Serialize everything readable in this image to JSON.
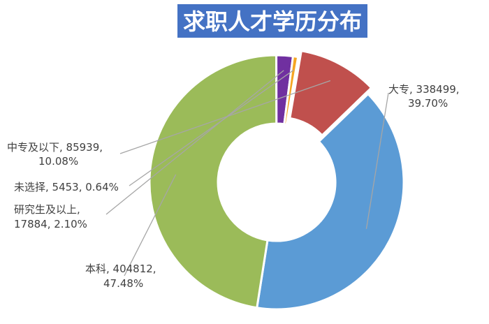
{
  "chart_data": {
    "type": "pie",
    "variant": "donut",
    "title": "求职人才学历分布",
    "slices": [
      {
        "name": "大专",
        "value": 338499,
        "percent": "39.70%",
        "color": "#5b9bd5",
        "label_line1": "大专, 338499,",
        "label_line2": "39.70%"
      },
      {
        "name": "本科",
        "value": 404812,
        "percent": "47.48%",
        "color": "#9bbb59",
        "label_line1": "本科, 404812,",
        "label_line2": "47.48%"
      },
      {
        "name": "研究生及以上",
        "value": 17884,
        "percent": "2.10%",
        "color": "#7030a0",
        "label_line1": "研究生及以上,",
        "label_line2": "17884, 2.10%"
      },
      {
        "name": "未选择",
        "value": 5453,
        "percent": "0.64%",
        "color": "#f5a623",
        "label_line1": "未选择, 5453, 0.64%",
        "label_line2": ""
      },
      {
        "name": "中专及以下",
        "value": 85939,
        "percent": "10.08%",
        "color": "#c0504d",
        "label_line1": "中专及以下, 85939,",
        "label_line2": "10.08%"
      }
    ],
    "legend": "none"
  }
}
